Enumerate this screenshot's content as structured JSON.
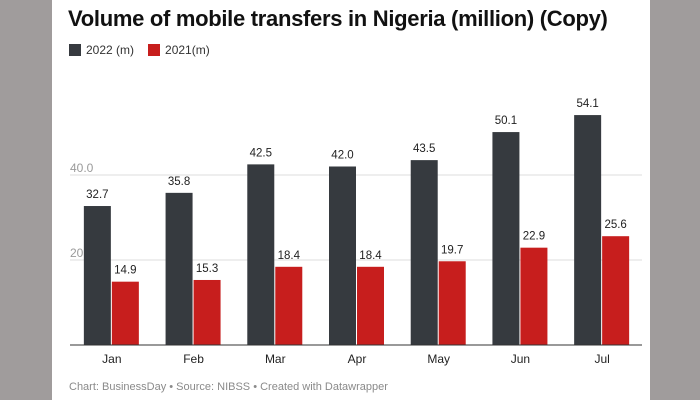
{
  "chart_data": {
    "type": "bar",
    "title": "Volume of mobile transfers in Nigeria (million) (Copy)",
    "categories": [
      "Jan",
      "Feb",
      "Mar",
      "Apr",
      "May",
      "Jun",
      "Jul"
    ],
    "series": [
      {
        "name": "2022 (m)",
        "color": "#363a3f",
        "values": [
          32.7,
          35.8,
          42.5,
          42.0,
          43.5,
          50.1,
          54.1
        ]
      },
      {
        "name": "2021(m)",
        "color": "#c71e1d",
        "values": [
          14.9,
          15.3,
          18.4,
          18.4,
          19.7,
          22.9,
          25.6
        ]
      }
    ],
    "y_ticks": [
      20,
      40
    ],
    "y_tick_labels": [
      "20.0",
      "40.0"
    ],
    "ylim": [
      0,
      60
    ],
    "grid": true,
    "legend": "top-left",
    "xlabel": "",
    "ylabel": ""
  },
  "footer": {
    "text": "Chart: BusinessDay • Source: NIBSS • Created with Datawrapper"
  }
}
